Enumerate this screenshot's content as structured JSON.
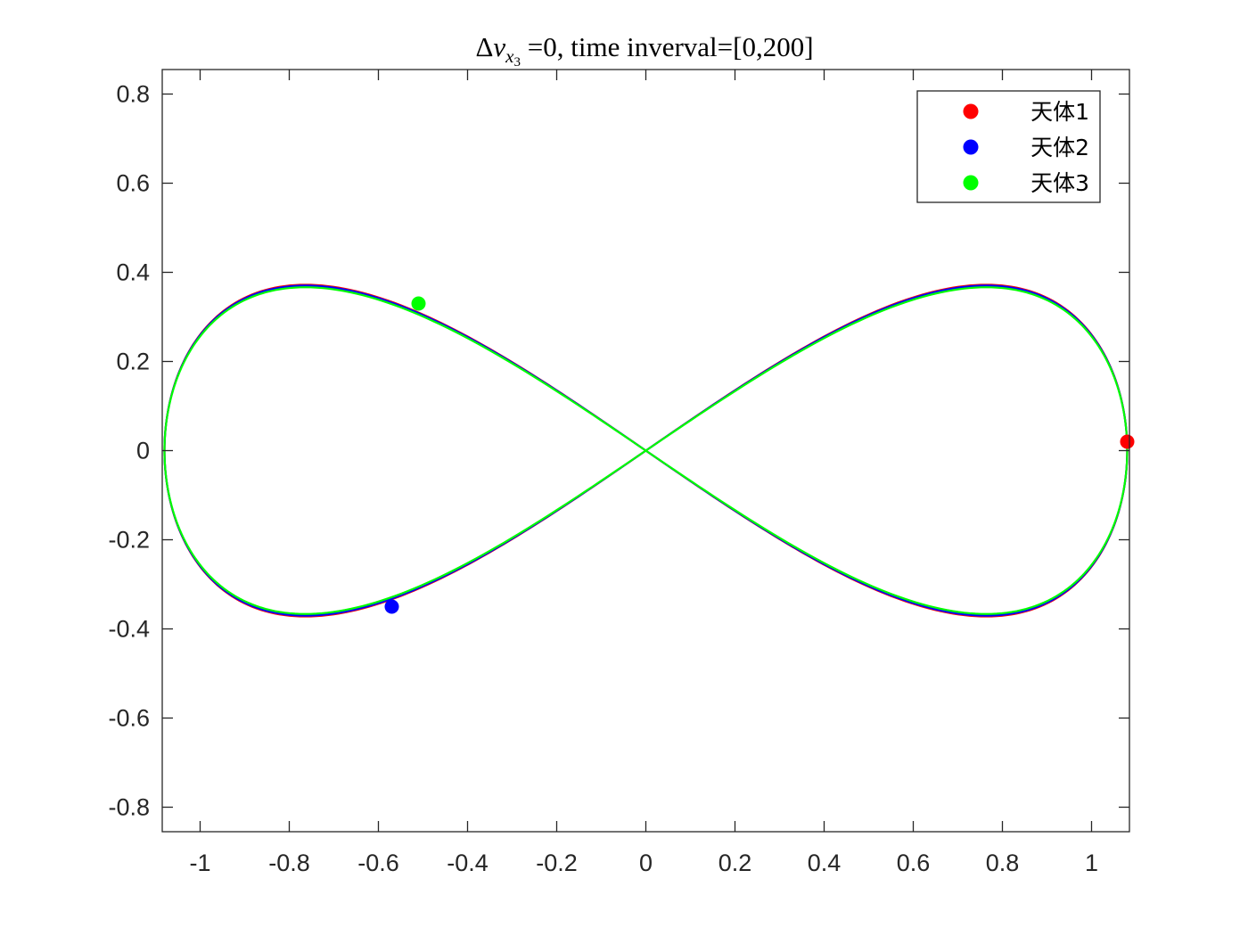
{
  "chart_data": {
    "type": "line",
    "title": {
      "delta": "Δ",
      "var": "v",
      "sub": "x",
      "subsub": "3",
      "rest": " =0, time inverval=[0,200]"
    },
    "xlabel": "",
    "ylabel": "",
    "xlim": [
      -1.085,
      1.085
    ],
    "ylim": [
      -0.855,
      0.855
    ],
    "x_ticks": [
      -1,
      -0.8,
      -0.6,
      -0.4,
      -0.2,
      0,
      0.2,
      0.4,
      0.6,
      0.8,
      1
    ],
    "x_tick_labels": [
      "-1",
      "-0.8",
      "-0.6",
      "-0.4",
      "-0.2",
      "0",
      "0.2",
      "0.4",
      "0.6",
      "0.8",
      "1"
    ],
    "y_ticks": [
      0.8,
      0.6,
      0.4,
      0.2,
      0,
      -0.2,
      -0.4,
      -0.6,
      -0.8
    ],
    "y_tick_labels": [
      "0.8",
      "0.6",
      "0.4",
      "0.2",
      "0",
      "-0.2",
      "-0.4",
      "-0.6",
      "-0.8"
    ],
    "grid": false,
    "legend_position": "top-right",
    "orbit_shape": "figure-eight",
    "orbit": {
      "x_extent": 1.08,
      "y_extent": 0.36,
      "lobe_peak_x": 0.66
    },
    "series": [
      {
        "name": "天体1",
        "color": "#ff0000",
        "marker": {
          "x": 1.08,
          "y": 0.02
        },
        "y_scale": 1.0
      },
      {
        "name": "天体2",
        "color": "#0000ff",
        "marker": {
          "x": -0.57,
          "y": -0.35
        },
        "y_scale": 0.995
      },
      {
        "name": "天体3",
        "color": "#00ff00",
        "marker": {
          "x": -0.51,
          "y": 0.33
        },
        "y_scale": 0.985
      }
    ]
  }
}
